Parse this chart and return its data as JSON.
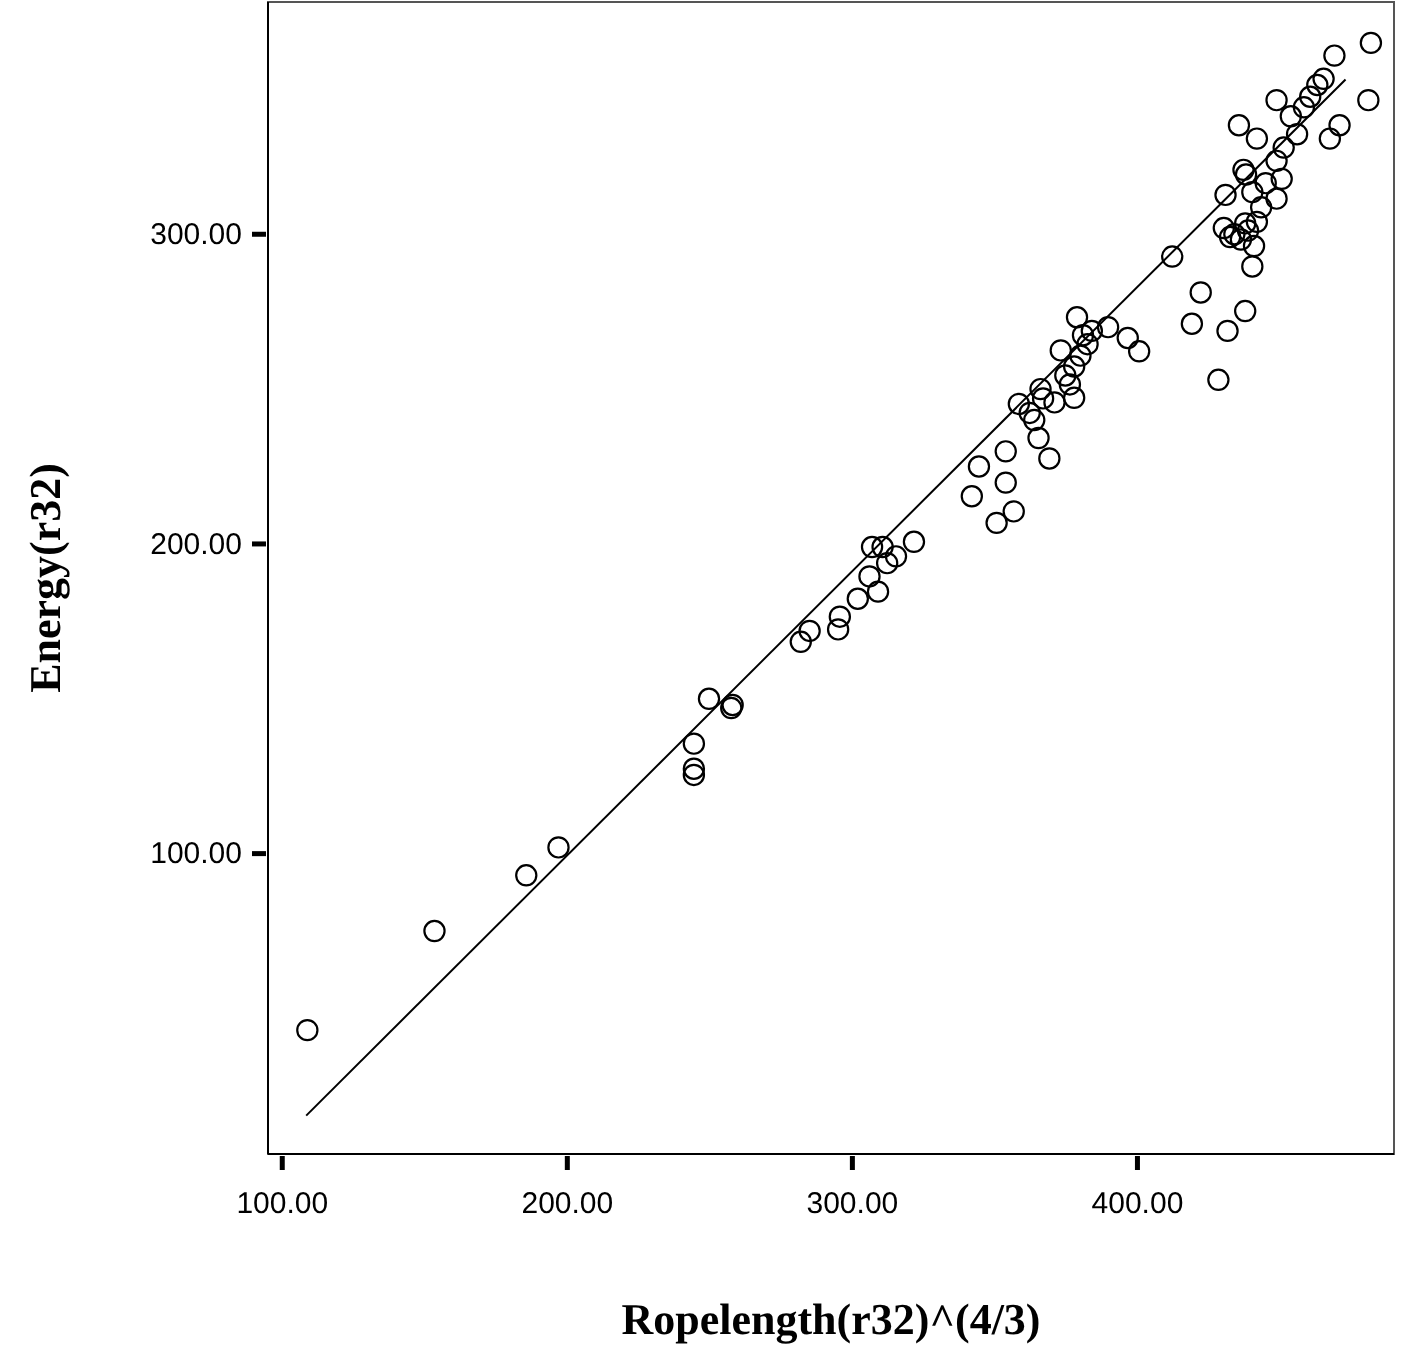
{
  "chart_data": {
    "type": "scatter",
    "xlabel": "Ropelength(r32)^(4/3)",
    "ylabel": "Energy(r32)",
    "xlim": [
      95,
      490
    ],
    "ylim": [
      3,
      375
    ],
    "xticks": [
      {
        "value": 100,
        "label": "100.00"
      },
      {
        "value": 200,
        "label": "200.00"
      },
      {
        "value": 300,
        "label": "300.00"
      },
      {
        "value": 400,
        "label": "400.00"
      }
    ],
    "yticks": [
      {
        "value": 100,
        "label": "100.00"
      },
      {
        "value": 200,
        "label": "200.00"
      },
      {
        "value": 300,
        "label": "300.00"
      }
    ],
    "grid": false,
    "marker": "circle",
    "series": [
      {
        "color": "#000000",
        "x": [
          108.8,
          153.4,
          185.6,
          196.9,
          244.4,
          244.4,
          244.4,
          249.7,
          257.5,
          258,
          281.9,
          285,
          295,
          295.6,
          301.9,
          306.9,
          310.6,
          306,
          309,
          312.2,
          315.3,
          321.6,
          341.9,
          344.4,
          350.6,
          353.8,
          353.8,
          356.6,
          358.4,
          362.2,
          363.8,
          365.3,
          366,
          366.9,
          369.1,
          370.9,
          373.1,
          374.7,
          376.3,
          377.8,
          377.8,
          378.8,
          380,
          380.9,
          382.5,
          384,
          389.7,
          396.6,
          400.6,
          412.2,
          419.1,
          422.2,
          428.4,
          431.6,
          430.3,
          430.9,
          435.6,
          437.8,
          434,
          436.3,
          438.8,
          440.3,
          438.1,
          440.3,
          441.9,
          437.2,
          440.9,
          441.9,
          443.4,
          445,
          448.8,
          448.8,
          450.6,
          448.8,
          451.3,
          453.8,
          456,
          458.4,
          460.6,
          463.1,
          465.3,
          469.1,
          467.5,
          470.9,
          481,
          481.9,
          432.5,
          437.8
        ],
        "values": [
          43,
          75,
          93,
          102,
          135.5,
          127.4,
          125.4,
          150,
          147,
          148,
          168.4,
          171.9,
          172.4,
          176.5,
          182.3,
          199,
          199,
          189.5,
          184.6,
          193.8,
          196,
          200.7,
          215.4,
          225,
          206.8,
          219.8,
          229.9,
          210.5,
          245.2,
          242.3,
          240,
          234.2,
          250,
          247,
          227.6,
          245.7,
          262.5,
          254.4,
          251.5,
          247.2,
          257.3,
          273.2,
          260.8,
          267.4,
          264.5,
          268.8,
          270,
          266.5,
          262.2,
          292.8,
          271.1,
          281.2,
          253,
          268.8,
          302,
          312.7,
          335.2,
          275.2,
          300,
          298.3,
          301.2,
          289.6,
          319.3,
          313.6,
          330.9,
          320.8,
          296.2,
          304,
          308.7,
          316.5,
          343.3,
          311.5,
          317.9,
          323.7,
          328,
          338.1,
          332.3,
          341,
          344.4,
          348.2,
          350.2,
          357.7,
          330.9,
          335.2,
          343.3,
          361.8,
          299.1,
          303.5
        ]
      },
      {
        "type": "line",
        "color": "#000000",
        "marker": "none",
        "line_style": "solid",
        "x": [
          108.4,
          473
        ],
        "values": [
          15.4,
          350
        ]
      }
    ]
  }
}
